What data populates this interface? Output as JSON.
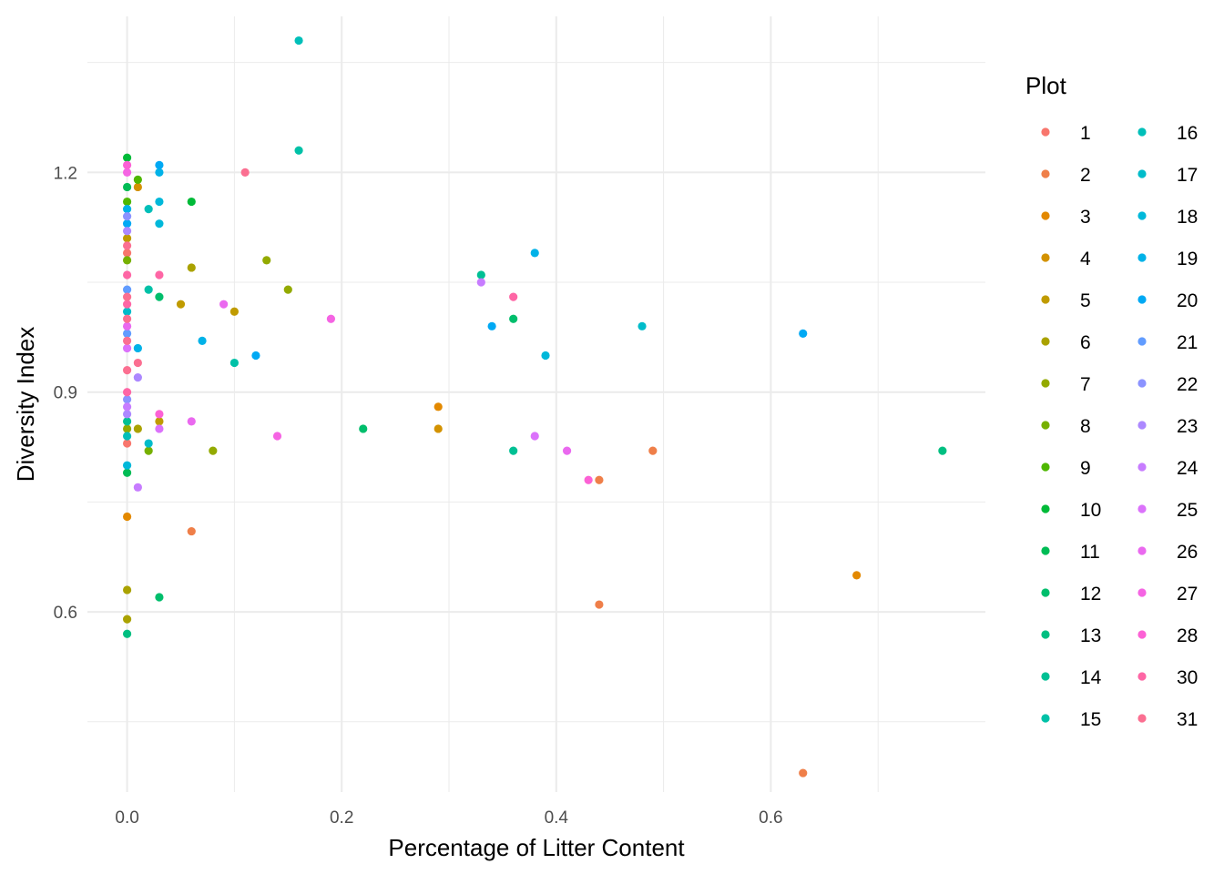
{
  "chart_data": {
    "type": "scatter",
    "xlabel": "Percentage of Litter Content",
    "ylabel": "Diversity Index",
    "xlim": [
      -0.037,
      0.8
    ],
    "ylim": [
      0.354,
      1.413
    ],
    "x_ticks": [
      0.0,
      0.2,
      0.4,
      0.6
    ],
    "x_tick_labels": [
      "0.0",
      "0.2",
      "0.4",
      "0.6"
    ],
    "x_minor_ticks": [
      0.1,
      0.3,
      0.5,
      0.7
    ],
    "y_ticks": [
      0.6,
      0.9,
      1.2
    ],
    "y_tick_labels": [
      "0.6",
      "0.9",
      "1.2"
    ],
    "y_minor_ticks": [
      0.45,
      0.75,
      1.05,
      1.35
    ],
    "grid": true,
    "legend": {
      "title": "Plot",
      "position": "right",
      "columns": 2
    },
    "series": [
      {
        "name": "1",
        "color": "#F8766D",
        "points": [
          [
            0.0,
            1.09
          ],
          [
            0.0,
            0.83
          ]
        ]
      },
      {
        "name": "2",
        "color": "#EF7F49",
        "points": [
          [
            0.44,
            0.61
          ],
          [
            0.49,
            0.82
          ],
          [
            0.06,
            0.71
          ],
          [
            0.63,
            0.38
          ],
          [
            0.44,
            0.78
          ]
        ]
      },
      {
        "name": "3",
        "color": "#E38900",
        "points": [
          [
            0.68,
            0.65
          ],
          [
            0.0,
            0.73
          ],
          [
            0.29,
            0.88
          ]
        ]
      },
      {
        "name": "4",
        "color": "#D39200",
        "points": [
          [
            0.29,
            0.85
          ],
          [
            0.01,
            1.18
          ]
        ]
      },
      {
        "name": "5",
        "color": "#C09B00",
        "points": [
          [
            0.1,
            1.01
          ],
          [
            0.05,
            1.02
          ],
          [
            0.0,
            1.11
          ],
          [
            0.03,
            0.86
          ]
        ]
      },
      {
        "name": "6",
        "color": "#AAA200",
        "points": [
          [
            0.06,
            1.07
          ],
          [
            0.0,
            0.63
          ],
          [
            0.01,
            0.85
          ],
          [
            0.0,
            0.59
          ]
        ]
      },
      {
        "name": "7",
        "color": "#93AA00",
        "points": [
          [
            0.13,
            1.08
          ],
          [
            0.15,
            1.04
          ],
          [
            0.08,
            0.82
          ],
          [
            0.0,
            0.85
          ]
        ]
      },
      {
        "name": "8",
        "color": "#76B000",
        "points": [
          [
            0.02,
            0.82
          ],
          [
            0.0,
            1.08
          ]
        ]
      },
      {
        "name": "9",
        "color": "#4EB700",
        "points": [
          [
            0.01,
            1.19
          ],
          [
            0.0,
            1.16
          ]
        ]
      },
      {
        "name": "10",
        "color": "#00BA38",
        "points": [
          [
            0.0,
            1.22
          ],
          [
            0.06,
            1.16
          ]
        ]
      },
      {
        "name": "11",
        "color": "#00BC55",
        "points": [
          [
            0.0,
            1.18
          ],
          [
            0.0,
            0.79
          ]
        ]
      },
      {
        "name": "12",
        "color": "#00BE6C",
        "points": [
          [
            0.22,
            0.85
          ],
          [
            0.36,
            1.0
          ],
          [
            0.03,
            1.03
          ],
          [
            0.03,
            0.62
          ]
        ]
      },
      {
        "name": "13",
        "color": "#00BF81",
        "points": [
          [
            0.76,
            0.82
          ],
          [
            0.0,
            0.57
          ]
        ]
      },
      {
        "name": "14",
        "color": "#00C094",
        "points": [
          [
            0.36,
            0.82
          ],
          [
            0.33,
            1.06
          ],
          [
            0.0,
            0.86
          ]
        ]
      },
      {
        "name": "15",
        "color": "#00C1A7",
        "points": [
          [
            0.16,
            1.23
          ],
          [
            0.1,
            0.94
          ],
          [
            0.02,
            1.04
          ]
        ]
      },
      {
        "name": "16",
        "color": "#00BFB9",
        "points": [
          [
            0.16,
            1.38
          ],
          [
            0.02,
            1.15
          ],
          [
            0.0,
            0.84
          ]
        ]
      },
      {
        "name": "17",
        "color": "#00BCCA",
        "points": [
          [
            0.48,
            0.99
          ],
          [
            0.02,
            0.83
          ],
          [
            0.0,
            1.01
          ]
        ]
      },
      {
        "name": "18",
        "color": "#00B8DA",
        "points": [
          [
            0.03,
            1.16
          ],
          [
            0.03,
            1.13
          ],
          [
            0.39,
            0.95
          ],
          [
            0.0,
            0.8
          ]
        ]
      },
      {
        "name": "19",
        "color": "#00B2E8",
        "points": [
          [
            0.38,
            1.09
          ],
          [
            0.07,
            0.97
          ],
          [
            0.01,
            0.96
          ],
          [
            0.0,
            1.15
          ],
          [
            0.03,
            1.2
          ]
        ]
      },
      {
        "name": "20",
        "color": "#00A9F4",
        "points": [
          [
            0.63,
            0.98
          ],
          [
            0.34,
            0.99
          ],
          [
            0.12,
            0.95
          ],
          [
            0.03,
            1.21
          ],
          [
            0.0,
            1.13
          ]
        ]
      },
      {
        "name": "21",
        "color": "#619CFF",
        "points": [
          [
            0.0,
            1.04
          ],
          [
            0.0,
            0.98
          ]
        ]
      },
      {
        "name": "22",
        "color": "#8B93FF",
        "points": [
          [
            0.0,
            1.14
          ],
          [
            0.0,
            0.89
          ]
        ]
      },
      {
        "name": "23",
        "color": "#AC88FF",
        "points": [
          [
            0.01,
            0.92
          ],
          [
            0.0,
            1.12
          ],
          [
            0.0,
            0.87
          ]
        ]
      },
      {
        "name": "24",
        "color": "#C77CFF",
        "points": [
          [
            0.33,
            1.05
          ],
          [
            0.01,
            0.77
          ],
          [
            0.0,
            0.88
          ]
        ]
      },
      {
        "name": "25",
        "color": "#DB72FB",
        "points": [
          [
            0.38,
            0.84
          ],
          [
            0.03,
            0.85
          ],
          [
            0.0,
            0.96
          ]
        ]
      },
      {
        "name": "26",
        "color": "#EA69EF",
        "points": [
          [
            0.41,
            0.82
          ],
          [
            0.06,
            0.86
          ],
          [
            0.09,
            1.02
          ],
          [
            0.0,
            0.99
          ]
        ]
      },
      {
        "name": "27",
        "color": "#F564E3",
        "points": [
          [
            0.19,
            1.0
          ],
          [
            0.14,
            0.84
          ],
          [
            0.0,
            1.2
          ]
        ]
      },
      {
        "name": "28",
        "color": "#FC61D5",
        "points": [
          [
            0.43,
            0.78
          ],
          [
            0.03,
            0.87
          ],
          [
            0.0,
            1.21
          ]
        ]
      },
      {
        "name": "30",
        "color": "#FE66A5",
        "points": [
          [
            0.36,
            1.03
          ],
          [
            0.03,
            1.06
          ],
          [
            0.0,
            1.02
          ],
          [
            0.0,
            0.9
          ],
          [
            0.0,
            1.06
          ]
        ]
      },
      {
        "name": "31",
        "color": "#FB6F91",
        "points": [
          [
            0.11,
            1.2
          ],
          [
            0.01,
            0.94
          ],
          [
            0.0,
            0.93
          ],
          [
            0.0,
            0.97
          ],
          [
            0.0,
            1.0
          ],
          [
            0.0,
            1.03
          ],
          [
            0.0,
            1.1
          ]
        ]
      }
    ]
  }
}
